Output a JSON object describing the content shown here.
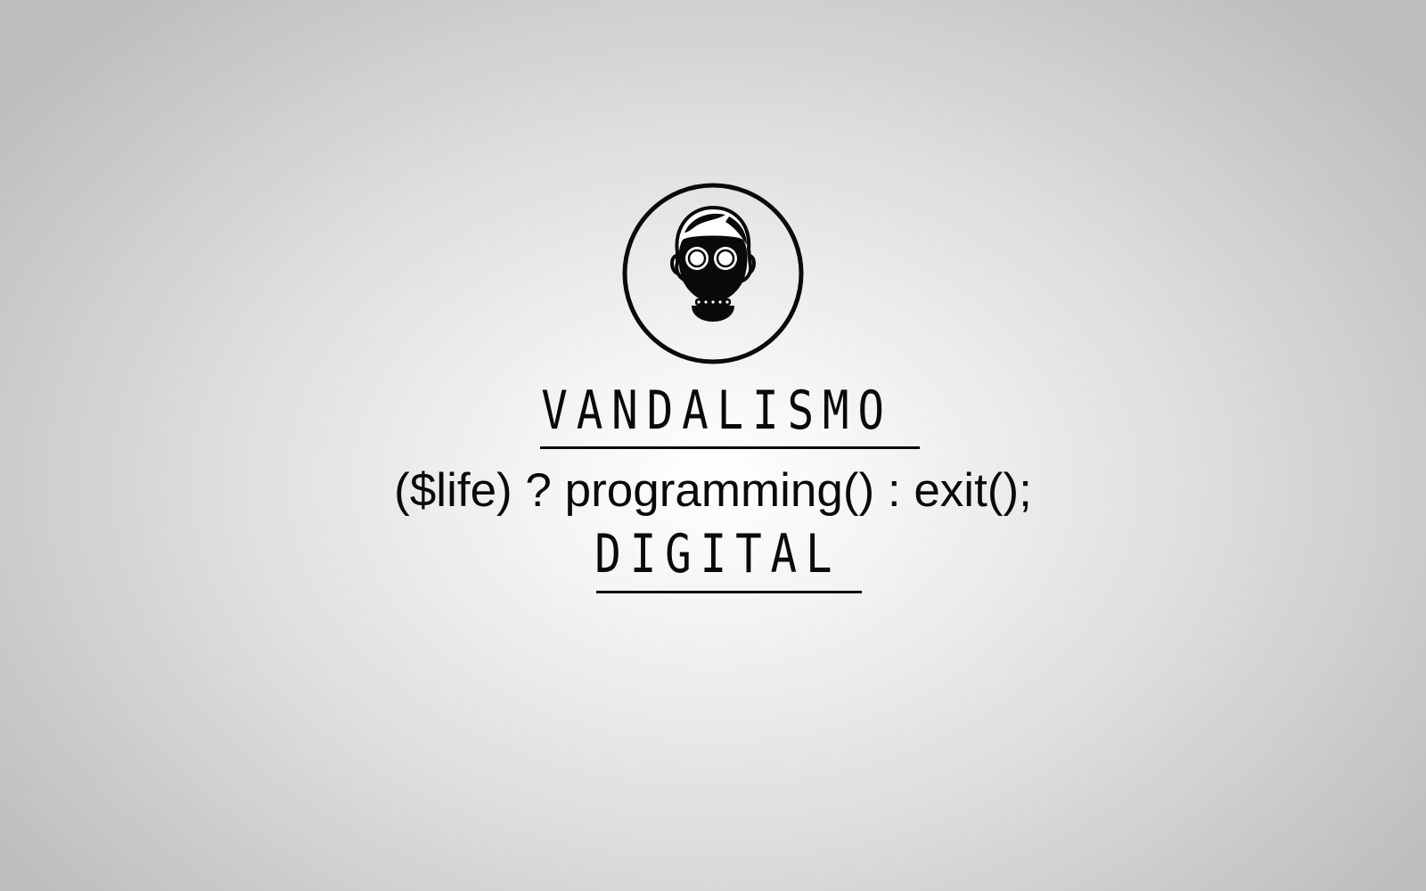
{
  "logo": {
    "icon": "gas-mask-head-icon"
  },
  "title_top": "VANDALISMO",
  "tagline": "($life) ? programming() : exit();",
  "title_bottom": "DIGITAL",
  "colors": {
    "ink": "#0a0a0a",
    "background_center": "#ffffff",
    "background_edge": "#bdbdbd"
  }
}
